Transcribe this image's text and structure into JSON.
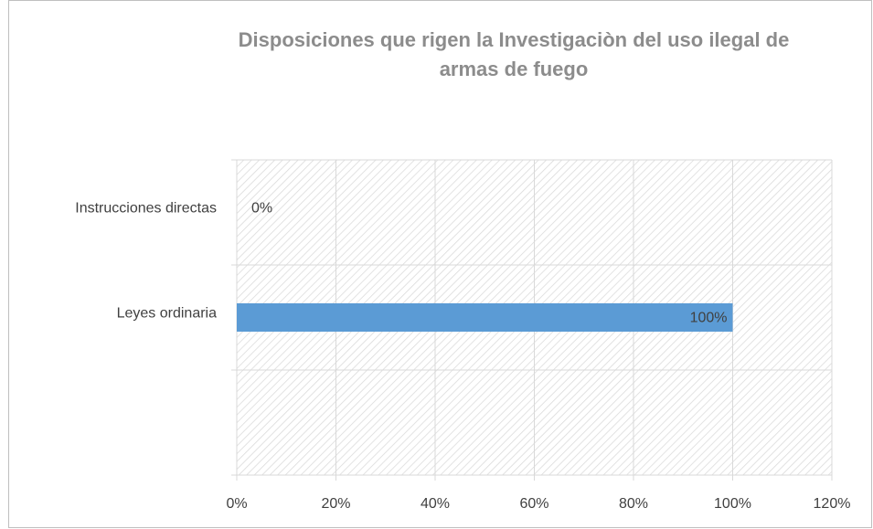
{
  "chart_data": {
    "type": "hbar",
    "title": "Disposiciones que rigen la Investigaciòn del uso ilegal de armas de fuego",
    "categories": [
      "Instrucciones directas",
      "Leyes ordinaria",
      null
    ],
    "values": [
      0,
      100,
      null
    ],
    "value_labels": [
      "0%",
      "100%",
      null
    ],
    "color": "#5b9bd5",
    "xlim": [
      0,
      120
    ],
    "xticks": [
      {
        "value": 0,
        "label": "0%"
      },
      {
        "value": 20,
        "label": "20%"
      },
      {
        "value": 40,
        "label": "40%"
      },
      {
        "value": 60,
        "label": "60%"
      },
      {
        "value": 80,
        "label": "80%"
      },
      {
        "value": 100,
        "label": "100%"
      },
      {
        "value": 120,
        "label": "120%"
      }
    ],
    "grid": true
  }
}
